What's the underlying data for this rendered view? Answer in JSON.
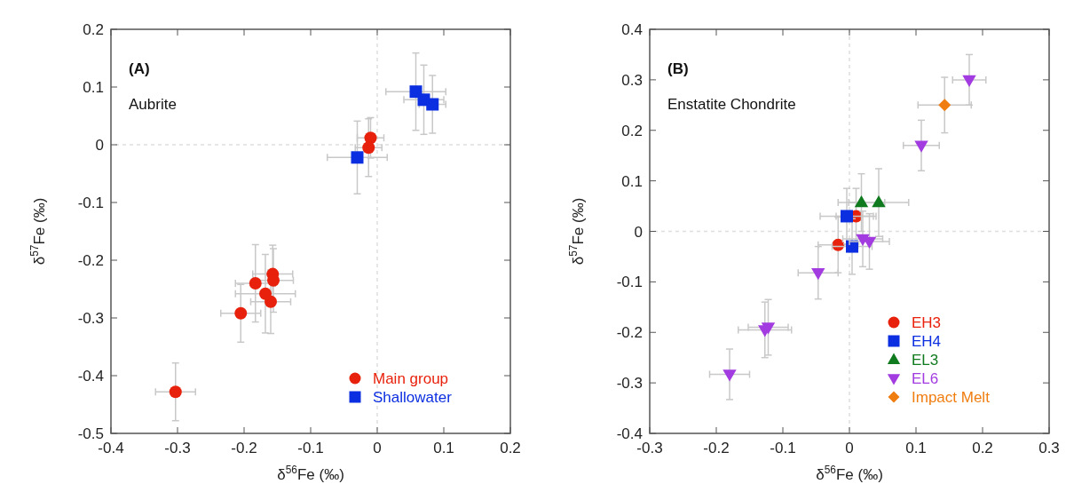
{
  "chart_data": [
    {
      "type": "scatter",
      "xlabel": "δ$^{56}$Fe (‰)",
      "ylabel": "δ$^{57}$Fe (‰)",
      "annotations": [
        "(A)",
        "Aubrite"
      ],
      "xlim": [
        -0.4,
        0.2
      ],
      "xticks": [
        -0.4,
        -0.3,
        -0.2,
        -0.1,
        0,
        0.1,
        0.2
      ],
      "ylim": [
        -0.5,
        0.2
      ],
      "yticks": [
        -0.5,
        -0.4,
        -0.3,
        -0.2,
        -0.1,
        0,
        0.1,
        0.2
      ],
      "ref_lines": [
        {
          "axis": "x",
          "value": 0,
          "line_style": "dashed",
          "color": "#c8c8c8"
        },
        {
          "axis": "y",
          "value": 0,
          "line_style": "dashed",
          "color": "#c8c8c8"
        }
      ],
      "legend": "bottom right",
      "grid": false,
      "series": [
        {
          "name": "Main group",
          "color": "#e8210c",
          "marker": "circle",
          "x": [
            -0.01,
            -0.013,
            -0.303,
            -0.205,
            -0.183,
            -0.157,
            -0.156,
            -0.168,
            -0.16
          ],
          "values": [
            0.012,
            -0.005,
            -0.428,
            -0.292,
            -0.24,
            -0.224,
            -0.235,
            -0.258,
            -0.272
          ],
          "xerrors": [
            0.02,
            0.02,
            0.03,
            0.03,
            0.03,
            0.03,
            0.03,
            0.045,
            0.03
          ],
          "errors": [
            0.035,
            0.05,
            0.05,
            0.05,
            0.067,
            0.05,
            0.055,
            0.068,
            0.055
          ]
        },
        {
          "name": "Shallowater",
          "color": "#0a2ee0",
          "marker": "square",
          "x": [
            -0.03,
            0.058,
            0.07,
            0.083
          ],
          "values": [
            -0.022,
            0.092,
            0.078,
            0.07
          ],
          "xerrors": [
            0.045,
            0.045,
            0.03,
            0.02
          ],
          "errors": [
            0.063,
            0.067,
            0.06,
            0.05
          ]
        }
      ]
    },
    {
      "type": "scatter",
      "xlabel": "δ$^{56}$Fe (‰)",
      "ylabel": "δ$^{57}$Fe (‰)",
      "annotations": [
        "(B)",
        "Enstatite Chondrite"
      ],
      "xlim": [
        -0.3,
        0.3
      ],
      "xticks": [
        -0.3,
        -0.2,
        -0.1,
        0,
        0.1,
        0.2,
        0.3
      ],
      "ylim": [
        -0.4,
        0.4
      ],
      "yticks": [
        -0.4,
        -0.3,
        -0.2,
        -0.1,
        0,
        0.1,
        0.2,
        0.3,
        0.4
      ],
      "ref_lines": [
        {
          "axis": "x",
          "value": 0,
          "line_style": "dashed",
          "color": "#c8c8c8"
        },
        {
          "axis": "y",
          "value": 0,
          "line_style": "dashed",
          "color": "#c8c8c8"
        }
      ],
      "legend": "bottom right",
      "grid": false,
      "series": [
        {
          "name": "EH3",
          "color": "#e8210c",
          "marker": "circle",
          "x": [
            0.01,
            -0.017
          ],
          "values": [
            0.03,
            -0.027
          ],
          "xerrors": [
            0.03,
            0.03
          ],
          "errors": [
            0.055,
            0.055
          ]
        },
        {
          "name": "EH4",
          "color": "#0a2ee0",
          "marker": "square",
          "x": [
            -0.004,
            0.004
          ],
          "values": [
            0.03,
            -0.03
          ],
          "xerrors": [
            0.04,
            0.03
          ],
          "errors": [
            0.055,
            0.055
          ]
        },
        {
          "name": "EL3",
          "color": "#0f7a1e",
          "marker": "triangle",
          "x": [
            0.018,
            0.044
          ],
          "values": [
            0.057,
            0.057
          ],
          "xerrors": [
            0.035,
            0.045
          ],
          "errors": [
            0.057,
            0.067
          ]
        },
        {
          "name": "EL6",
          "color": "#a23be0",
          "marker": "triangle-down",
          "x": [
            0.02,
            0.03,
            -0.047,
            -0.127,
            -0.122,
            -0.18,
            0.108,
            0.18
          ],
          "values": [
            -0.015,
            -0.02,
            -0.082,
            -0.195,
            -0.19,
            -0.283,
            0.17,
            0.3
          ],
          "xerrors": [
            0.03,
            0.03,
            0.03,
            0.04,
            0.03,
            0.03,
            0.027,
            0.025
          ],
          "errors": [
            0.055,
            0.055,
            0.052,
            0.055,
            0.055,
            0.05,
            0.05,
            0.05
          ]
        },
        {
          "name": "Impact Melt",
          "color": "#f07d10",
          "marker": "diamond",
          "x": [
            0.143
          ],
          "values": [
            0.25
          ],
          "xerrors": [
            0.04
          ],
          "errors": [
            0.055
          ]
        }
      ]
    }
  ]
}
